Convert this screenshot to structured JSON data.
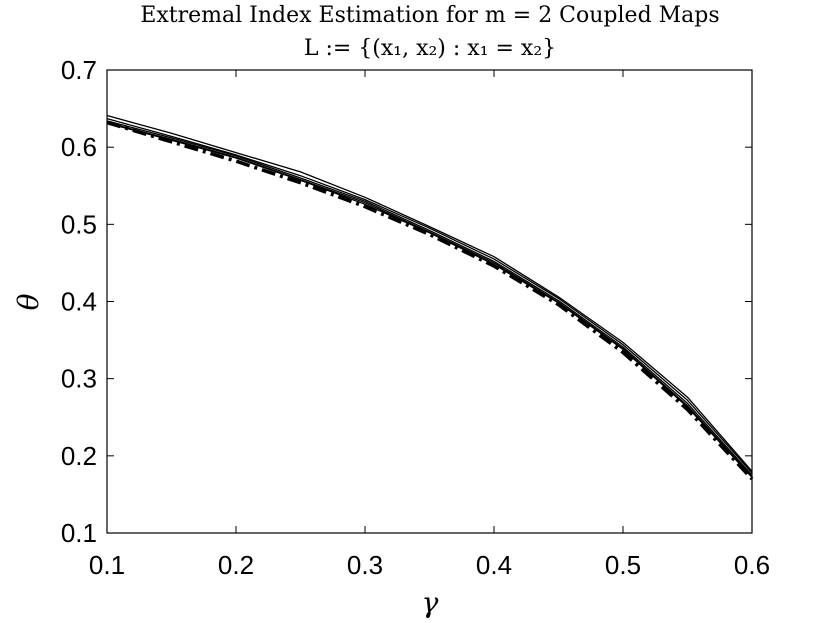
{
  "chart_data": {
    "type": "line",
    "title": "Extremal Index Estimation for m = 2 Coupled Maps",
    "subtitle": "L := {(x₁, x₂) : x₁ = x₂}",
    "xlabel": "γ",
    "ylabel": "θ",
    "xlim": [
      0.1,
      0.6
    ],
    "ylim": [
      0.1,
      0.7
    ],
    "xticks": [
      "0.1",
      "0.2",
      "0.3",
      "0.4",
      "0.5",
      "0.6"
    ],
    "yticks": [
      "0.1",
      "0.2",
      "0.3",
      "0.4",
      "0.5",
      "0.6",
      "0.7"
    ],
    "grid": false,
    "x": [
      0.1,
      0.15,
      0.2,
      0.25,
      0.3,
      0.35,
      0.4,
      0.45,
      0.5,
      0.55,
      0.6
    ],
    "series": [
      {
        "style": "solid-thin",
        "values": [
          0.641,
          0.618,
          0.593,
          0.568,
          0.535,
          0.497,
          0.458,
          0.406,
          0.347,
          0.276,
          0.18
        ]
      },
      {
        "style": "solid-thin",
        "values": [
          0.637,
          0.614,
          0.59,
          0.563,
          0.532,
          0.495,
          0.455,
          0.404,
          0.344,
          0.272,
          0.178
        ]
      },
      {
        "style": "solid-thin",
        "values": [
          0.634,
          0.612,
          0.589,
          0.56,
          0.53,
          0.492,
          0.452,
          0.401,
          0.341,
          0.268,
          0.175
        ]
      },
      {
        "style": "solid-thin",
        "values": [
          0.632,
          0.61,
          0.587,
          0.558,
          0.528,
          0.49,
          0.45,
          0.399,
          0.339,
          0.265,
          0.173
        ]
      },
      {
        "style": "solid-thin",
        "values": [
          0.631,
          0.609,
          0.586,
          0.557,
          0.526,
          0.489,
          0.448,
          0.398,
          0.338,
          0.263,
          0.172
        ]
      },
      {
        "style": "dash-dot-thick",
        "values": [
          0.632,
          0.607,
          0.582,
          0.554,
          0.523,
          0.487,
          0.446,
          0.396,
          0.334,
          0.26,
          0.17
        ]
      }
    ]
  }
}
